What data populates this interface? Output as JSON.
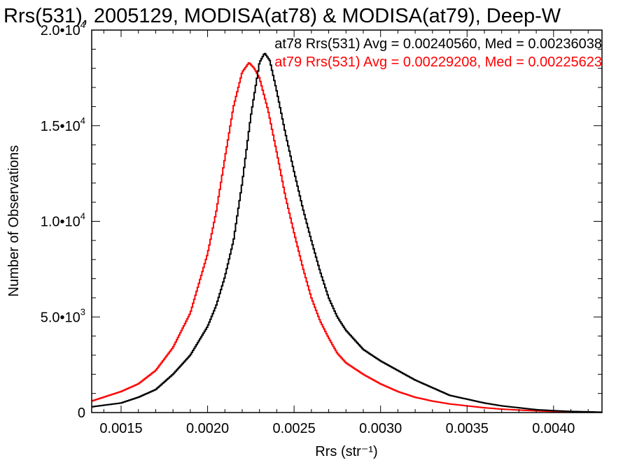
{
  "chart_data": {
    "type": "line",
    "step": true,
    "title": "Rrs(531), 2005129, MODISA(at78) & MODISA(at79), Deep-W",
    "xlabel": "Rrs (str⁻¹)",
    "ylabel": "Number of Observations",
    "xlim": [
      0.00133,
      0.00428
    ],
    "ylim": [
      0,
      20000
    ],
    "x_ticks": [
      0.0015,
      0.002,
      0.0025,
      0.003,
      0.0035,
      0.004
    ],
    "x_tick_labels": [
      "0.0015",
      "0.0020",
      "0.0025",
      "0.0030",
      "0.0035",
      "0.0040"
    ],
    "y_ticks": [
      0,
      5000,
      10000,
      15000,
      20000
    ],
    "y_tick_labels": [
      {
        "mantissa": "0",
        "exp": ""
      },
      {
        "mantissa": "5.0•10",
        "exp": "3"
      },
      {
        "mantissa": "1.0•10",
        "exp": "4"
      },
      {
        "mantissa": "1.5•10",
        "exp": "4"
      },
      {
        "mantissa": "2.0•10",
        "exp": "4"
      }
    ],
    "grid": false,
    "legend_position": "top-right",
    "legend": [
      {
        "text": "at78 Rrs(531) Avg = 0.00240560, Med = 0.00236038",
        "color": "#000000"
      },
      {
        "text": "at79 Rrs(531) Avg = 0.00229208, Med = 0.00225623",
        "color": "#ff0000"
      }
    ],
    "series": [
      {
        "color": "#000000",
        "x": [
          0.00133,
          0.0015,
          0.0016,
          0.0017,
          0.0018,
          0.0019,
          0.002,
          0.00205,
          0.0021,
          0.00215,
          0.0022,
          0.00225,
          0.0023,
          0.00233,
          0.00236,
          0.0024,
          0.00245,
          0.0025,
          0.00255,
          0.0026,
          0.00265,
          0.0027,
          0.00275,
          0.0028,
          0.0029,
          0.003,
          0.0031,
          0.0032,
          0.0033,
          0.0034,
          0.0035,
          0.0036,
          0.0037,
          0.0038,
          0.0039,
          0.004,
          0.0041,
          0.0042,
          0.00428
        ],
        "y": [
          300,
          500,
          800,
          1200,
          2000,
          3000,
          4500,
          5600,
          7100,
          9000,
          12000,
          15500,
          18300,
          18800,
          18400,
          16800,
          14600,
          12600,
          10700,
          9000,
          7400,
          6000,
          5000,
          4300,
          3300,
          2700,
          2200,
          1700,
          1300,
          900,
          700,
          500,
          350,
          250,
          150,
          100,
          60,
          40,
          20
        ]
      },
      {
        "color": "#ff0000",
        "x": [
          0.00133,
          0.0015,
          0.0016,
          0.0017,
          0.0018,
          0.0019,
          0.002,
          0.00205,
          0.0021,
          0.00215,
          0.0022,
          0.00224,
          0.00227,
          0.0023,
          0.00235,
          0.0024,
          0.00245,
          0.0025,
          0.00255,
          0.0026,
          0.00265,
          0.0027,
          0.00275,
          0.0028,
          0.0029,
          0.003,
          0.0031,
          0.0032,
          0.0033,
          0.0034,
          0.0035,
          0.0036,
          0.0037,
          0.0038,
          0.0039,
          0.004,
          0.0041,
          0.0042,
          0.00428
        ],
        "y": [
          600,
          1100,
          1500,
          2200,
          3400,
          5200,
          8300,
          10500,
          13300,
          16000,
          17800,
          18300,
          18000,
          17500,
          15800,
          13600,
          11300,
          9400,
          7600,
          6000,
          4800,
          3900,
          3100,
          2600,
          2000,
          1500,
          1100,
          800,
          600,
          450,
          350,
          250,
          180,
          130,
          90,
          60,
          40,
          25,
          15
        ]
      }
    ]
  }
}
